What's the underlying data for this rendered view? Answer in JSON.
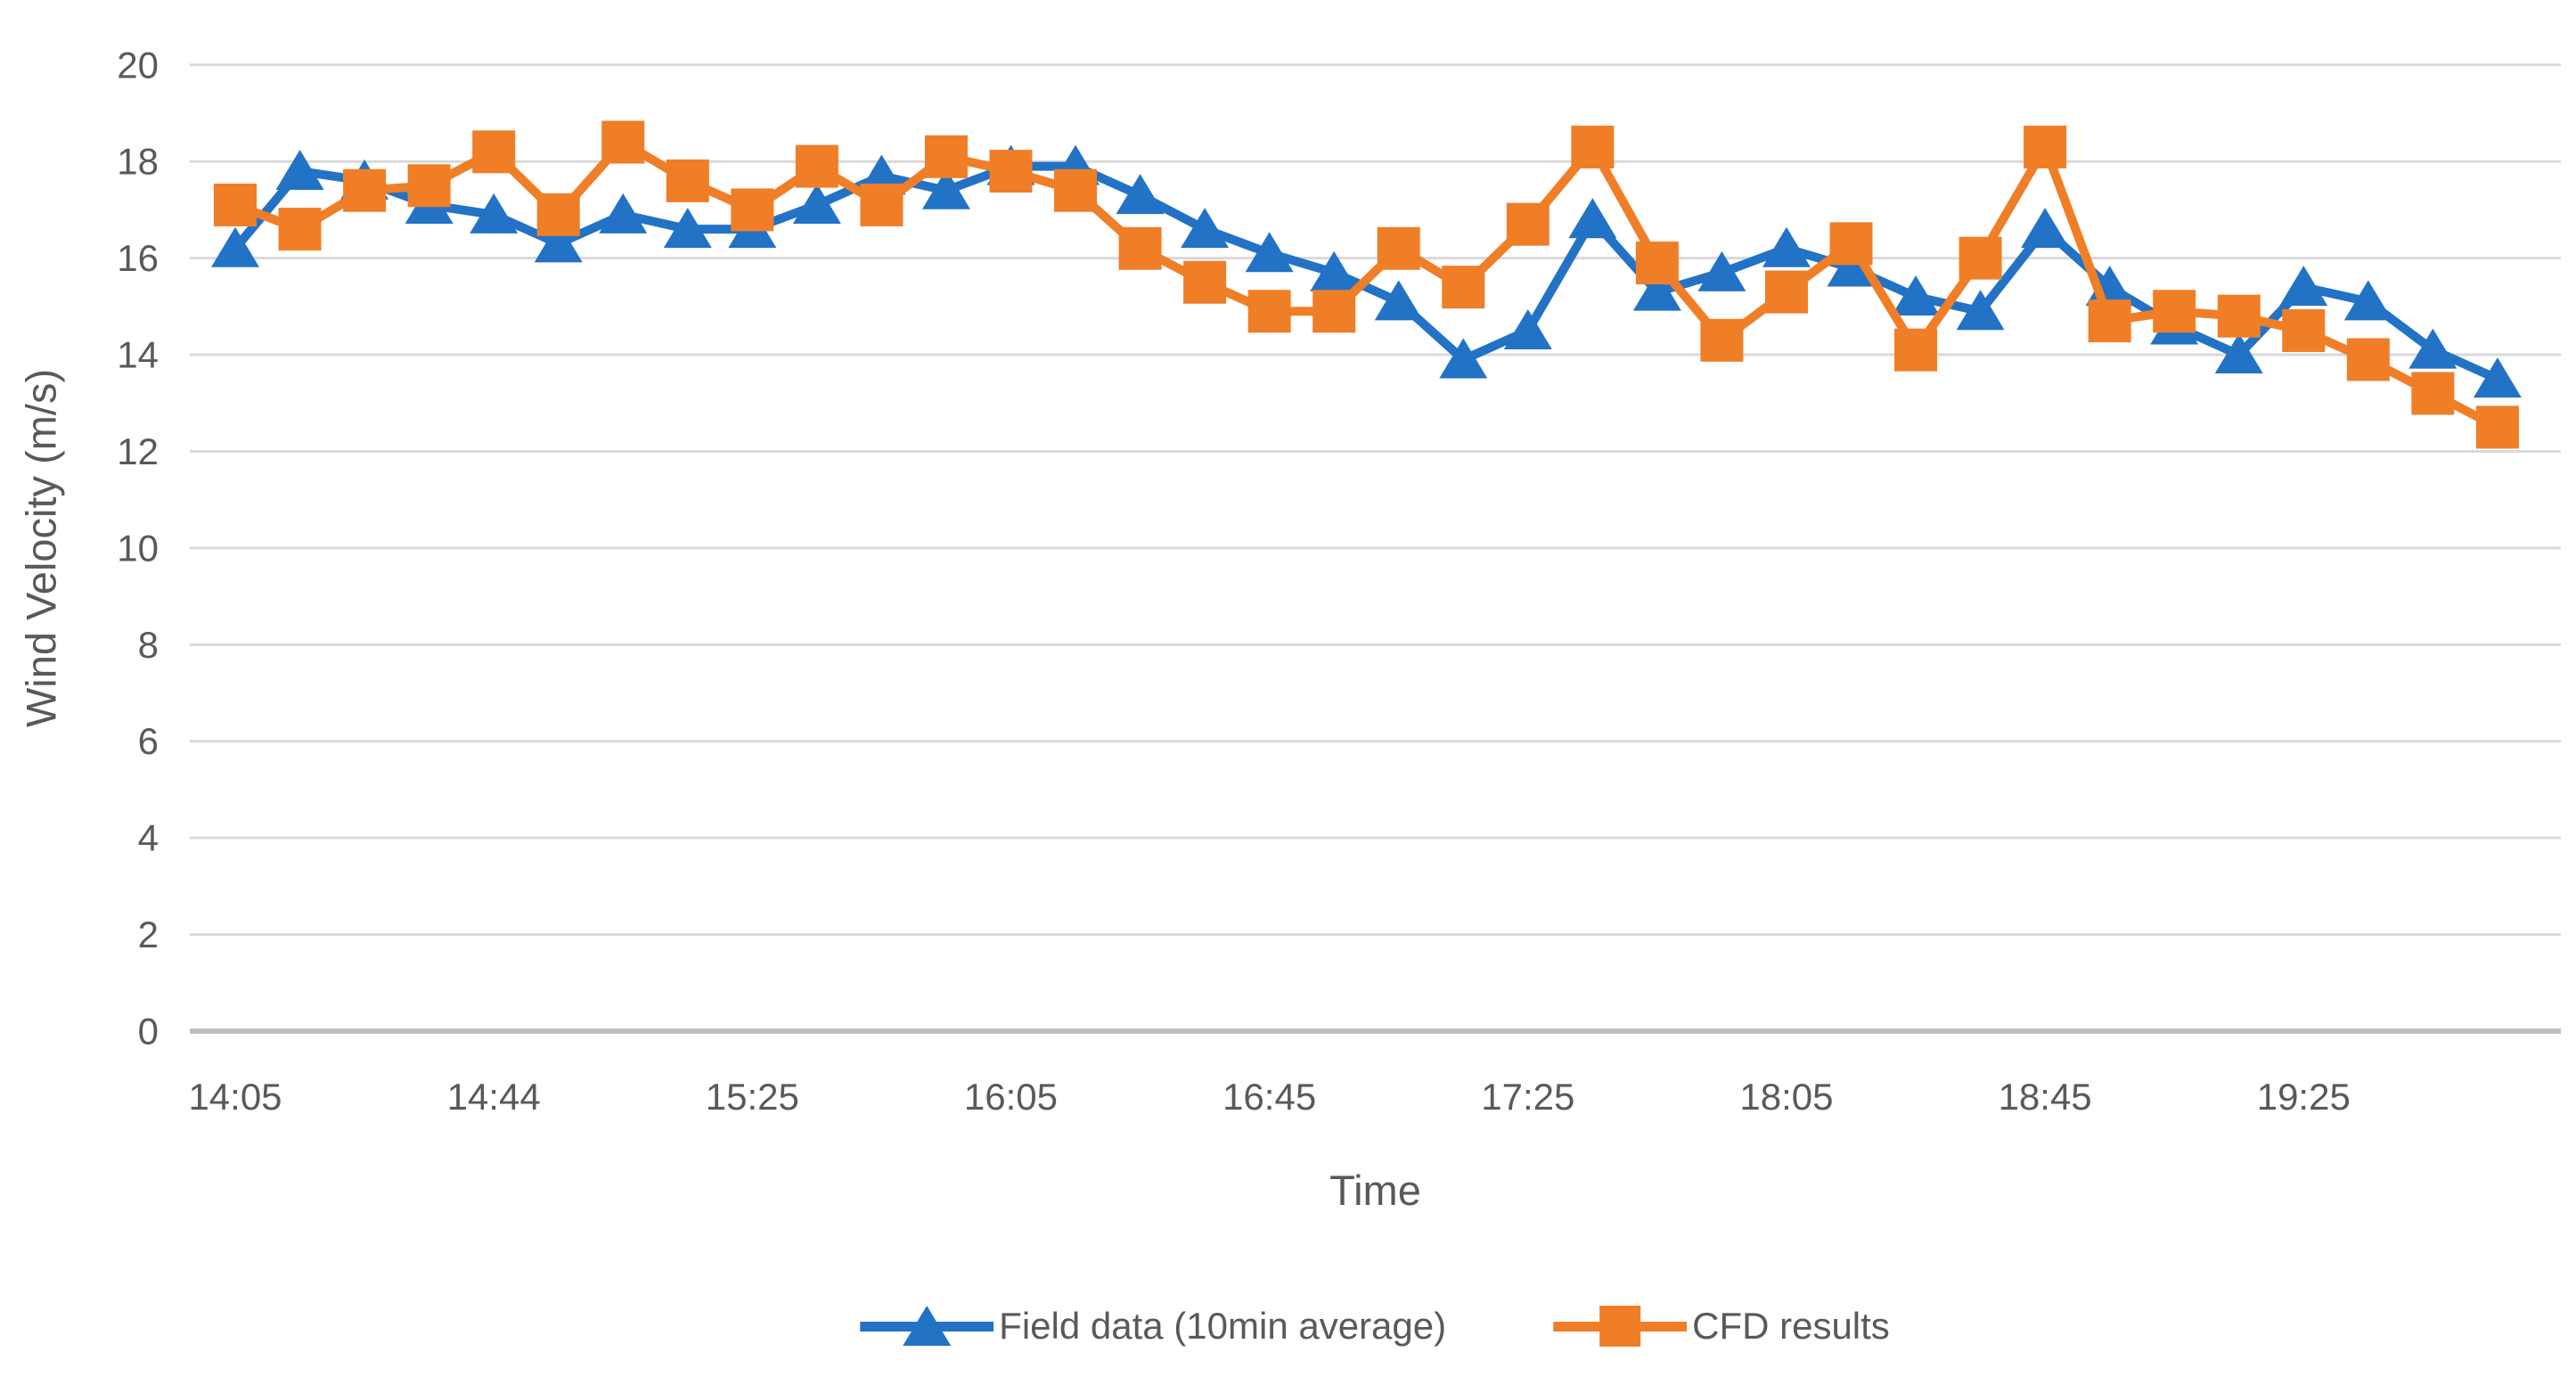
{
  "chart_data": {
    "type": "line",
    "title": "",
    "xlabel": "Time",
    "ylabel": "Wind Velocity (m/s)",
    "ylim": [
      0,
      20
    ],
    "ytick_step": 2,
    "y_tick_labels": [
      "0",
      "2",
      "4",
      "6",
      "8",
      "10",
      "12",
      "14",
      "16",
      "18",
      "20"
    ],
    "grid": "horizontal",
    "legend_position": "bottom",
    "n_points": 36,
    "x_tick_interval": 4,
    "x_tick_labels": [
      "14:05",
      "14:44",
      "15:25",
      "16:05",
      "16:45",
      "17:25",
      "18:05",
      "18:45",
      "19:25"
    ],
    "series": [
      {
        "name": "Field data (10min average)",
        "marker": "triangle",
        "color": "#2272C6",
        "values": [
          16.2,
          17.8,
          17.6,
          17.1,
          16.9,
          16.3,
          16.9,
          16.6,
          16.6,
          17.1,
          17.7,
          17.4,
          17.9,
          17.9,
          17.3,
          16.6,
          16.1,
          15.7,
          15.1,
          13.9,
          14.5,
          16.8,
          15.3,
          15.7,
          16.2,
          15.8,
          15.2,
          14.9,
          16.6,
          15.4,
          14.6,
          14.0,
          15.4,
          15.1,
          14.1,
          13.5
        ]
      },
      {
        "name": "CFD results",
        "marker": "square",
        "color": "#F07E27",
        "values": [
          17.1,
          16.6,
          17.4,
          17.5,
          18.2,
          16.9,
          18.4,
          17.6,
          17.0,
          17.9,
          17.1,
          18.1,
          17.8,
          17.4,
          16.2,
          15.5,
          14.9,
          14.9,
          16.2,
          15.4,
          16.7,
          18.3,
          15.9,
          14.3,
          15.3,
          16.3,
          14.1,
          16.0,
          18.3,
          14.7,
          14.9,
          14.8,
          14.5,
          13.9,
          13.2,
          12.5
        ]
      }
    ],
    "colors": {
      "gridline": "#D9D9D9",
      "axis_line": "#BFBFBF",
      "text": "#595959"
    }
  }
}
